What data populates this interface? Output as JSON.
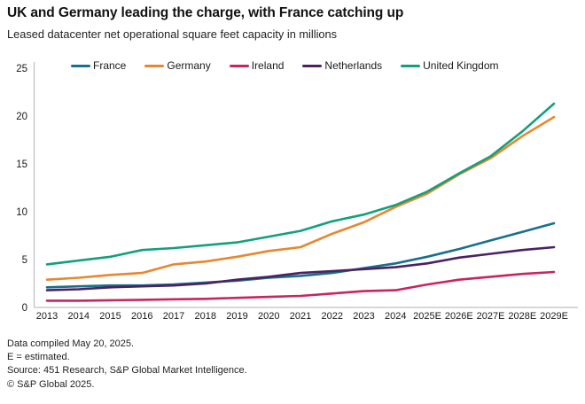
{
  "header": {
    "title": "UK and Germany leading the charge, with France catching up",
    "subtitle": "Leased datacenter net operational square feet capacity in millions"
  },
  "chart_data": {
    "type": "line",
    "x": [
      "2013",
      "2014",
      "2015",
      "2016",
      "2017",
      "2018",
      "2019",
      "2020",
      "2021",
      "2022",
      "2023",
      "2024",
      "2025E",
      "2026E",
      "2027E",
      "2028E",
      "2029E"
    ],
    "series": [
      {
        "name": "France",
        "color": "#17708f",
        "values": [
          2.1,
          2.2,
          2.3,
          2.3,
          2.4,
          2.6,
          2.8,
          3.1,
          3.3,
          3.6,
          4.1,
          4.6,
          5.3,
          6.1,
          7.0,
          7.9,
          8.8
        ]
      },
      {
        "name": "Germany",
        "color": "#e8872e",
        "values": [
          2.9,
          3.1,
          3.4,
          3.6,
          4.5,
          4.8,
          5.3,
          5.9,
          6.3,
          7.7,
          8.9,
          10.5,
          11.9,
          13.9,
          15.6,
          17.9,
          19.9
        ]
      },
      {
        "name": "Ireland",
        "color": "#c9245f",
        "values": [
          0.7,
          0.7,
          0.75,
          0.8,
          0.85,
          0.9,
          1.0,
          1.1,
          1.2,
          1.45,
          1.7,
          1.8,
          2.4,
          2.9,
          3.2,
          3.5,
          3.7
        ]
      },
      {
        "name": "Netherlands",
        "color": "#4c2160",
        "values": [
          1.8,
          1.9,
          2.1,
          2.2,
          2.3,
          2.5,
          2.9,
          3.2,
          3.6,
          3.8,
          4.0,
          4.2,
          4.6,
          5.2,
          5.6,
          6.0,
          6.3
        ]
      },
      {
        "name": "United Kingdom",
        "color": "#10a17c",
        "values": [
          4.5,
          4.9,
          5.3,
          6.0,
          6.2,
          6.5,
          6.8,
          7.4,
          8.0,
          9.0,
          9.7,
          10.7,
          12.1,
          14.0,
          15.8,
          18.4,
          21.3
        ]
      }
    ],
    "title": "UK and Germany leading the charge, with France catching up",
    "xlabel": "",
    "ylabel": "Leased datacenter net operational square feet capacity in millions",
    "ylim": [
      0,
      25
    ],
    "yticks": [
      0,
      5,
      10,
      15,
      20,
      25
    ],
    "grid": false,
    "legend_position": "top",
    "axis_color": "#bfbfbf",
    "tick_text_color": "#1a1a1a"
  },
  "footer": {
    "lines": [
      "Data compiled May 20, 2025.",
      "E = estimated.",
      "Source: 451 Research, S&P Global Market Intelligence.",
      "© S&P Global 2025."
    ]
  }
}
